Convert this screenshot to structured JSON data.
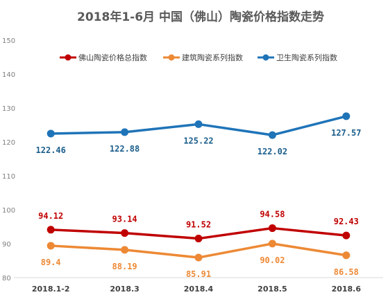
{
  "chart_data": {
    "type": "line",
    "title": "2018年1-6月 中国（佛山）陶瓷价格指数走势",
    "xlabel": "",
    "ylabel": "",
    "categories": [
      "2018.1-2",
      "2018.3",
      "2018.4",
      "2018.5",
      "2018.6"
    ],
    "ylim": [
      80,
      150
    ],
    "yticks": [
      80,
      90,
      100,
      110,
      120,
      130,
      140,
      150
    ],
    "grid": false,
    "legend_position": "top",
    "series": [
      {
        "name": "佛山陶瓷价格总指数",
        "color": "#c00000",
        "values": [
          94.12,
          93.14,
          91.52,
          94.58,
          92.43
        ],
        "labels": [
          "94.12",
          "93.14",
          "91.52",
          "94.58",
          "92.43"
        ],
        "label_placement": "above",
        "label_color": "#c00000"
      },
      {
        "name": "建筑陶瓷系列指数",
        "color": "#ed8935",
        "values": [
          89.4,
          88.19,
          85.91,
          90.02,
          86.58
        ],
        "labels": [
          "89.4",
          "88.19",
          "85.91",
          "90.02",
          "86.58"
        ],
        "label_placement": "below",
        "label_color": "#ed8935"
      },
      {
        "name": "卫生陶瓷系列指数",
        "color": "#1f74b8",
        "values": [
          122.46,
          122.88,
          125.22,
          122.02,
          127.57
        ],
        "labels": [
          "122.46",
          "122.88",
          "125.22",
          "122.02",
          "127.57"
        ],
        "label_placement": "below",
        "label_color": "#1b5e8c"
      }
    ]
  }
}
